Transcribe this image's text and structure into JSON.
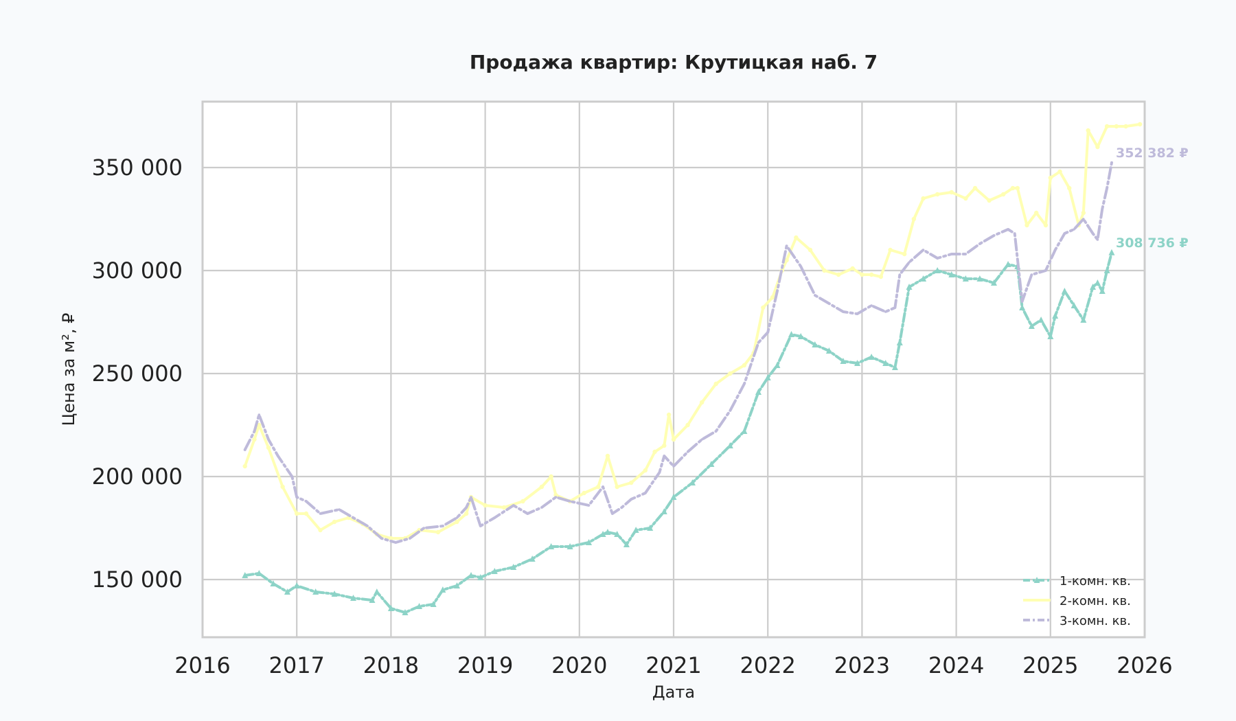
{
  "chart_data": {
    "type": "line",
    "title": "Продажа квартир: Крутицкая наб. 7",
    "xlabel": "Дата",
    "ylabel": "Цена за м², ₽",
    "xlim": [
      2016,
      2026
    ],
    "ylim": [
      122000,
      382000
    ],
    "x_ticks": [
      2016,
      2017,
      2018,
      2019,
      2020,
      2021,
      2022,
      2023,
      2024,
      2025,
      2026
    ],
    "x_tick_labels": [
      "2016",
      "2017",
      "2018",
      "2019",
      "2020",
      "2021",
      "2022",
      "2023",
      "2024",
      "2025",
      "2026"
    ],
    "y_ticks": [
      150000,
      200000,
      250000,
      300000,
      350000
    ],
    "y_tick_labels": [
      "150 000",
      "200 000",
      "250 000",
      "300 000",
      "350 000"
    ],
    "grid": true,
    "legend_position": "bottom-right",
    "series": [
      {
        "name": "1-комн. кв.",
        "color": "#8dd3c7",
        "marker": "triangle",
        "end_label": "308 736 ₽",
        "x": [
          2016.45,
          2016.6,
          2016.75,
          2016.9,
          2017.0,
          2017.2,
          2017.4,
          2017.6,
          2017.8,
          2017.85,
          2018.0,
          2018.15,
          2018.3,
          2018.45,
          2018.55,
          2018.7,
          2018.85,
          2018.95,
          2019.1,
          2019.3,
          2019.5,
          2019.7,
          2019.9,
          2020.1,
          2020.25,
          2020.3,
          2020.4,
          2020.5,
          2020.6,
          2020.75,
          2020.9,
          2021.0,
          2021.2,
          2021.4,
          2021.6,
          2021.75,
          2021.9,
          2022.0,
          2022.1,
          2022.25,
          2022.35,
          2022.5,
          2022.65,
          2022.8,
          2022.95,
          2023.1,
          2023.25,
          2023.35,
          2023.4,
          2023.5,
          2023.65,
          2023.8,
          2023.95,
          2024.1,
          2024.25,
          2024.4,
          2024.55,
          2024.65,
          2024.7,
          2024.8,
          2024.9,
          2025.0,
          2025.05,
          2025.15,
          2025.25,
          2025.35,
          2025.45,
          2025.5,
          2025.55,
          2025.6,
          2025.65
        ],
        "values": [
          152000,
          153000,
          148000,
          144000,
          147000,
          144000,
          143000,
          141000,
          140000,
          144000,
          136000,
          134000,
          137000,
          138000,
          145000,
          147000,
          152000,
          151000,
          154000,
          156000,
          160000,
          166000,
          166000,
          168000,
          172000,
          173000,
          172000,
          167000,
          174000,
          175000,
          183000,
          190000,
          197000,
          206000,
          215000,
          222000,
          241000,
          248000,
          254000,
          269000,
          268000,
          264000,
          261000,
          256000,
          255000,
          258000,
          255000,
          253000,
          265000,
          292000,
          296000,
          300000,
          298000,
          296000,
          296000,
          294000,
          303000,
          302000,
          282000,
          273000,
          276000,
          268000,
          278000,
          290000,
          283000,
          276000,
          292000,
          294000,
          290000,
          300000,
          308736
        ]
      },
      {
        "name": "2-комн. кв.",
        "color": "#ffffb3",
        "marker": "circle",
        "end_label": "",
        "x": [
          2016.45,
          2016.55,
          2016.6,
          2016.7,
          2016.85,
          2017.0,
          2017.1,
          2017.25,
          2017.4,
          2017.55,
          2017.7,
          2017.85,
          2018.0,
          2018.15,
          2018.3,
          2018.5,
          2018.7,
          2018.8,
          2018.85,
          2019.0,
          2019.2,
          2019.4,
          2019.6,
          2019.7,
          2019.75,
          2019.9,
          2020.05,
          2020.2,
          2020.3,
          2020.4,
          2020.55,
          2020.7,
          2020.8,
          2020.9,
          2020.95,
          2021.0,
          2021.15,
          2021.3,
          2021.45,
          2021.6,
          2021.75,
          2021.85,
          2021.95,
          2022.05,
          2022.15,
          2022.2,
          2022.3,
          2022.45,
          2022.6,
          2022.75,
          2022.9,
          2023.0,
          2023.1,
          2023.2,
          2023.3,
          2023.45,
          2023.55,
          2023.65,
          2023.8,
          2023.95,
          2024.1,
          2024.2,
          2024.35,
          2024.5,
          2024.6,
          2024.65,
          2024.75,
          2024.85,
          2024.95,
          2025.0,
          2025.1,
          2025.2,
          2025.3,
          2025.35,
          2025.4,
          2025.5,
          2025.6,
          2025.7,
          2025.8,
          2025.95
        ],
        "values": [
          205000,
          218000,
          225000,
          214000,
          195000,
          182000,
          182000,
          174000,
          178000,
          180000,
          177000,
          172000,
          170000,
          170000,
          174000,
          173000,
          178000,
          182000,
          190000,
          186000,
          185000,
          188000,
          195000,
          200000,
          191000,
          188000,
          192000,
          195000,
          210000,
          195000,
          197000,
          203000,
          212000,
          215000,
          230000,
          218000,
          225000,
          236000,
          245000,
          250000,
          254000,
          260000,
          282000,
          287000,
          300000,
          305000,
          316000,
          310000,
          300000,
          298000,
          301000,
          298000,
          298000,
          297000,
          310000,
          308000,
          325000,
          335000,
          337000,
          338000,
          335000,
          340000,
          334000,
          337000,
          340000,
          340000,
          322000,
          328000,
          322000,
          345000,
          348000,
          340000,
          322000,
          328000,
          368000,
          360000,
          370000,
          370000,
          370000,
          371000
        ]
      },
      {
        "name": "3-комн. кв.",
        "color": "#bebada",
        "marker": "none",
        "end_label": "352 382 ₽",
        "x": [
          2016.45,
          2016.55,
          2016.6,
          2016.7,
          2016.8,
          2016.95,
          2017.0,
          2017.1,
          2017.25,
          2017.45,
          2017.6,
          2017.75,
          2017.9,
          2018.05,
          2018.2,
          2018.35,
          2018.55,
          2018.7,
          2018.8,
          2018.85,
          2018.95,
          2019.1,
          2019.3,
          2019.45,
          2019.6,
          2019.75,
          2019.9,
          2020.1,
          2020.25,
          2020.35,
          2020.45,
          2020.55,
          2020.7,
          2020.85,
          2020.9,
          2021.0,
          2021.15,
          2021.3,
          2021.45,
          2021.6,
          2021.75,
          2021.9,
          2022.0,
          2022.1,
          2022.2,
          2022.35,
          2022.5,
          2022.65,
          2022.8,
          2022.95,
          2023.1,
          2023.25,
          2023.35,
          2023.4,
          2023.5,
          2023.65,
          2023.8,
          2023.95,
          2024.1,
          2024.25,
          2024.4,
          2024.55,
          2024.62,
          2024.7,
          2024.8,
          2024.95,
          2025.05,
          2025.15,
          2025.25,
          2025.35,
          2025.45,
          2025.5,
          2025.55,
          2025.6,
          2025.65
        ],
        "values": [
          213000,
          222000,
          230000,
          218000,
          210000,
          200000,
          190000,
          188000,
          182000,
          184000,
          180000,
          176000,
          170000,
          168000,
          170000,
          175000,
          176000,
          180000,
          185000,
          190000,
          176000,
          180000,
          186000,
          182000,
          185000,
          190000,
          188000,
          186000,
          195000,
          182000,
          185000,
          189000,
          192000,
          202000,
          210000,
          205000,
          212000,
          218000,
          222000,
          232000,
          245000,
          265000,
          270000,
          290000,
          312000,
          302000,
          288000,
          284000,
          280000,
          279000,
          283000,
          280000,
          282000,
          298000,
          304000,
          310000,
          306000,
          308000,
          308000,
          313000,
          317000,
          320000,
          318000,
          285000,
          298000,
          300000,
          310000,
          318000,
          320000,
          325000,
          318000,
          315000,
          330000,
          340000,
          352382
        ]
      }
    ]
  }
}
